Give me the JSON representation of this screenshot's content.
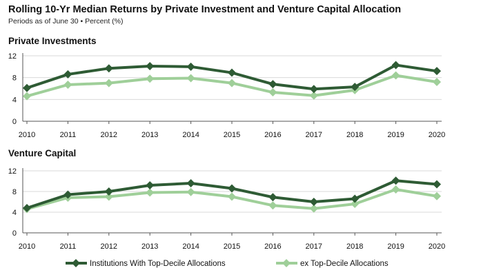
{
  "header": {
    "title": "Rolling 10-Yr Median Returns by Private Investment and Venture Capital Allocation",
    "subtitle": "Periods as of June 30 • Percent (%)"
  },
  "colors": {
    "dark_series": "#2e5b34",
    "light_series": "#9fcf99",
    "axis": "#555555",
    "grid": "#d9d9d9"
  },
  "legend": {
    "dark_label": "Institutions With Top-Decile Allocations",
    "light_label": "ex Top-Decile Allocations"
  },
  "chart_data": [
    {
      "type": "line",
      "title": "Private Investments",
      "categories": [
        "2010",
        "2011",
        "2012",
        "2013",
        "2014",
        "2015",
        "2016",
        "2017",
        "2018",
        "2019",
        "2020"
      ],
      "yticks": [
        "0",
        "4",
        "8",
        "12"
      ],
      "ylim": [
        0,
        12
      ],
      "grid": true,
      "series": [
        {
          "name": "Institutions With Top-Decile Allocations",
          "values": [
            6.1,
            8.6,
            9.7,
            10.1,
            10.0,
            8.9,
            6.8,
            5.9,
            6.3,
            10.3,
            9.2
          ]
        },
        {
          "name": "ex Top-Decile Allocations",
          "values": [
            4.6,
            6.7,
            7.0,
            7.8,
            7.9,
            7.0,
            5.3,
            4.7,
            5.7,
            8.4,
            7.2
          ]
        }
      ]
    },
    {
      "type": "line",
      "title": "Venture Capital",
      "categories": [
        "2010",
        "2011",
        "2012",
        "2013",
        "2014",
        "2015",
        "2016",
        "2017",
        "2018",
        "2019",
        "2020"
      ],
      "yticks": [
        "0",
        "4",
        "8",
        "12"
      ],
      "ylim": [
        0,
        12
      ],
      "grid": true,
      "series": [
        {
          "name": "Institutions With Top-Decile Allocations",
          "values": [
            4.8,
            7.4,
            8.0,
            9.2,
            9.6,
            8.6,
            6.9,
            6.0,
            6.6,
            10.1,
            9.4
          ]
        },
        {
          "name": "ex Top-Decile Allocations",
          "values": [
            4.6,
            6.8,
            7.0,
            7.8,
            7.9,
            7.0,
            5.3,
            4.7,
            5.6,
            8.4,
            7.1
          ]
        }
      ]
    }
  ]
}
